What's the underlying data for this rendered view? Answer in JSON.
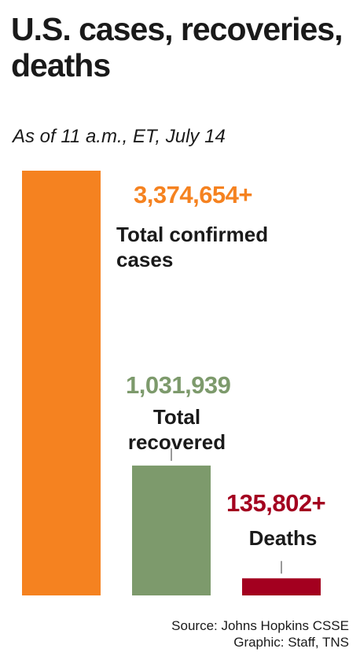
{
  "chart_data": {
    "type": "bar",
    "title": "U.S. cases, recoveries, deaths",
    "subtitle": "As of 11 a.m., ET, July 14",
    "categories": [
      "Total confirmed cases",
      "Total recovered",
      "Deaths"
    ],
    "values": [
      3374654,
      1031939,
      135802
    ],
    "value_labels": [
      "3,374,654+",
      "1,031,939",
      "135,802+"
    ],
    "colors": [
      "#f58220",
      "#7d9a6c",
      "#a3001f"
    ],
    "source": "Source: Johns Hopkins CSSE",
    "credit": "Graphic: Staff, TNS"
  }
}
